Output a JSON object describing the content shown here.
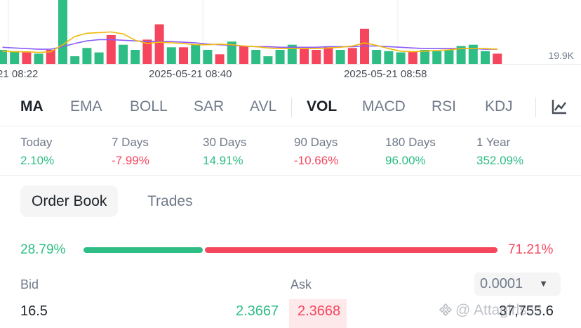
{
  "chart": {
    "volume_axis_label": "19.9K",
    "time_labels": [
      "21 08:22",
      "2025-05-21 08:40",
      "2025-05-21 08:58"
    ],
    "colors": {
      "up": "#2ebd85",
      "down": "#f6465d",
      "ma_yellow": "#f0b90b",
      "ma_purple": "#8b5cf6"
    },
    "volume_bars": [
      {
        "v": 0.22,
        "d": "up"
      },
      {
        "v": 0.2,
        "d": "up"
      },
      {
        "v": 0.18,
        "d": "down"
      },
      {
        "v": 0.16,
        "d": "up"
      },
      {
        "v": 0.22,
        "d": "down"
      },
      {
        "v": 1.0,
        "d": "up"
      },
      {
        "v": 0.12,
        "d": "up"
      },
      {
        "v": 0.25,
        "d": "up"
      },
      {
        "v": 0.18,
        "d": "up"
      },
      {
        "v": 0.45,
        "d": "down"
      },
      {
        "v": 0.3,
        "d": "up"
      },
      {
        "v": 0.22,
        "d": "up"
      },
      {
        "v": 0.38,
        "d": "down"
      },
      {
        "v": 0.62,
        "d": "down"
      },
      {
        "v": 0.26,
        "d": "up"
      },
      {
        "v": 0.26,
        "d": "down"
      },
      {
        "v": 0.3,
        "d": "up"
      },
      {
        "v": 0.22,
        "d": "up"
      },
      {
        "v": 0.15,
        "d": "down"
      },
      {
        "v": 0.35,
        "d": "up"
      },
      {
        "v": 0.28,
        "d": "down"
      },
      {
        "v": 0.22,
        "d": "up"
      },
      {
        "v": 0.12,
        "d": "up"
      },
      {
        "v": 0.22,
        "d": "up"
      },
      {
        "v": 0.3,
        "d": "up"
      },
      {
        "v": 0.25,
        "d": "down"
      },
      {
        "v": 0.22,
        "d": "down"
      },
      {
        "v": 0.26,
        "d": "down"
      },
      {
        "v": 0.22,
        "d": "up"
      },
      {
        "v": 0.25,
        "d": "down"
      },
      {
        "v": 0.55,
        "d": "down"
      },
      {
        "v": 0.22,
        "d": "up"
      },
      {
        "v": 0.2,
        "d": "up"
      },
      {
        "v": 0.18,
        "d": "up"
      },
      {
        "v": 0.2,
        "d": "down"
      },
      {
        "v": 0.22,
        "d": "up"
      },
      {
        "v": 0.2,
        "d": "up"
      },
      {
        "v": 0.22,
        "d": "up"
      },
      {
        "v": 0.28,
        "d": "up"
      },
      {
        "v": 0.3,
        "d": "up"
      },
      {
        "v": 0.2,
        "d": "up"
      },
      {
        "v": 0.16,
        "d": "down"
      }
    ],
    "ma_fast": [
      0.2,
      0.19,
      0.19,
      0.18,
      0.19,
      0.3,
      0.43,
      0.48,
      0.49,
      0.5,
      0.47,
      0.37,
      0.32,
      0.34,
      0.33,
      0.32,
      0.3,
      0.3,
      0.31,
      0.3,
      0.28,
      0.27,
      0.25,
      0.24,
      0.24,
      0.24,
      0.24,
      0.25,
      0.26,
      0.28,
      0.33,
      0.29,
      0.24,
      0.2,
      0.19,
      0.2,
      0.21,
      0.22,
      0.24,
      0.24,
      0.24,
      0.23
    ],
    "ma_slow": [
      0.26,
      0.25,
      0.24,
      0.23,
      0.23,
      0.27,
      0.32,
      0.36,
      0.38,
      0.38,
      0.37,
      0.36,
      0.35,
      0.35,
      0.35,
      0.34,
      0.33,
      0.31,
      0.3,
      0.29,
      0.28,
      0.27,
      0.27,
      0.26,
      0.26,
      0.26,
      0.26,
      0.27,
      0.27,
      0.27,
      0.28,
      0.28,
      0.27,
      0.26,
      0.25,
      0.24,
      0.24,
      0.24,
      0.24,
      0.24,
      0.23,
      0.23
    ]
  },
  "indicators": {
    "main": [
      "MA",
      "EMA",
      "BOLL",
      "SAR",
      "AVL"
    ],
    "sub": [
      "VOL",
      "MACD",
      "RSI",
      "KDJ"
    ],
    "active_main": "MA",
    "active_sub": "VOL"
  },
  "performance": [
    {
      "label": "Today",
      "value": "2.10%",
      "trend": "pos"
    },
    {
      "label": "7 Days",
      "value": "-7.99%",
      "trend": "neg"
    },
    {
      "label": "30 Days",
      "value": "14.91%",
      "trend": "pos"
    },
    {
      "label": "90 Days",
      "value": "-10.66%",
      "trend": "neg"
    },
    {
      "label": "180 Days",
      "value": "96.00%",
      "trend": "pos"
    },
    {
      "label": "1 Year",
      "value": "352.09%",
      "trend": "pos"
    }
  ],
  "orderbook": {
    "tabs": [
      "Order Book",
      "Trades"
    ],
    "active_tab": "Order Book",
    "bid_ratio_text": "28.79%",
    "ask_ratio_text": "71.21%",
    "bid_ratio": 0.2879,
    "bid_header": "Bid",
    "ask_header": "Ask",
    "precision": "0.0001",
    "first_row": {
      "bid_qty": "16.5",
      "bid_price": "2.3667",
      "ask_price": "2.3668",
      "ask_qty": "37,755.6"
    }
  },
  "watermark": "@ Attagirlsss"
}
